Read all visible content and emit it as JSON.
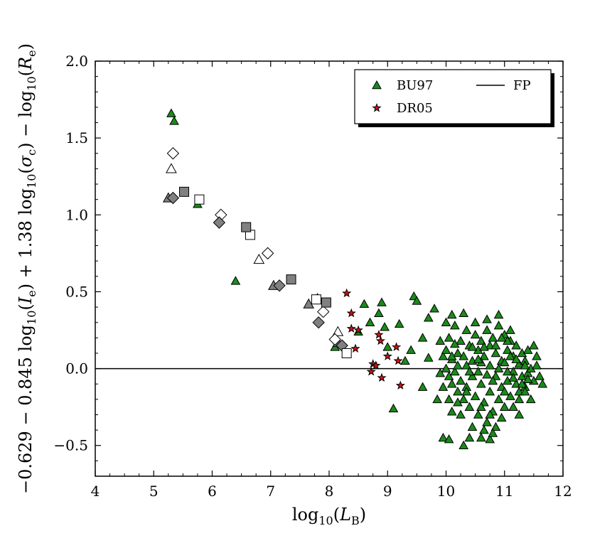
{
  "chart_data": {
    "type": "scatter",
    "title": "",
    "xlabel": "log10(LB)",
    "ylabel": "−0.629 − 0.845 log10(Ie) + 1.38 log10(σc) − log10(Re)",
    "xlim": [
      4,
      12
    ],
    "ylim": [
      -0.7,
      2.0
    ],
    "x_ticks": [
      "4",
      "5",
      "6",
      "7",
      "8",
      "9",
      "10",
      "11",
      "12"
    ],
    "y_ticks": [
      "−0.5",
      "0.0",
      "0.5",
      "1.0",
      "1.5",
      "2.0"
    ],
    "legend_position": "top-right",
    "reference_line": {
      "name": "FP",
      "y": 0.0,
      "color": "#000000"
    },
    "series": [
      {
        "name": "BU97",
        "marker": "triangle",
        "color": "#1a8a1a",
        "points": [
          [
            5.3,
            1.66
          ],
          [
            5.35,
            1.61
          ],
          [
            5.75,
            1.07
          ],
          [
            6.4,
            0.57
          ],
          [
            7.8,
            0.46
          ],
          [
            8.1,
            0.14
          ],
          [
            8.5,
            0.24
          ],
          [
            8.6,
            0.42
          ],
          [
            8.9,
            0.43
          ],
          [
            8.85,
            0.36
          ],
          [
            8.7,
            0.3
          ],
          [
            8.95,
            0.27
          ],
          [
            9.0,
            0.14
          ],
          [
            9.2,
            0.29
          ],
          [
            9.3,
            0.05
          ],
          [
            9.4,
            0.12
          ],
          [
            9.45,
            0.47
          ],
          [
            9.5,
            0.44
          ],
          [
            9.6,
            0.2
          ],
          [
            9.7,
            0.33
          ],
          [
            9.8,
            0.39
          ],
          [
            9.7,
            0.07
          ],
          [
            9.6,
            -0.12
          ],
          [
            9.1,
            -0.26
          ],
          [
            9.85,
            -0.2
          ],
          [
            9.9,
            0.18
          ],
          [
            9.95,
            -0.45
          ],
          [
            10.05,
            -0.46
          ],
          [
            10.3,
            -0.5
          ],
          [
            10.75,
            -0.46
          ],
          [
            10.0,
            0.3
          ],
          [
            10.05,
            0.2
          ],
          [
            10.1,
            0.35
          ],
          [
            10.15,
            0.28
          ],
          [
            10.2,
            0.1
          ],
          [
            10.3,
            0.36
          ],
          [
            10.35,
            0.25
          ],
          [
            10.4,
            0.15
          ],
          [
            10.45,
            0.05
          ],
          [
            10.5,
            0.22
          ],
          [
            10.55,
            0.12
          ],
          [
            10.6,
            0.18
          ],
          [
            10.65,
            0.08
          ],
          [
            10.7,
            0.25
          ],
          [
            10.75,
            0.15
          ],
          [
            10.8,
            0.2
          ],
          [
            10.85,
            0.1
          ],
          [
            10.9,
            0.28
          ],
          [
            10.95,
            0.05
          ],
          [
            11.0,
            0.22
          ],
          [
            11.05,
            0.12
          ],
          [
            11.1,
            0.18
          ],
          [
            11.15,
            0.08
          ],
          [
            11.2,
            0.15
          ],
          [
            11.25,
            0.03
          ],
          [
            11.3,
            0.1
          ],
          [
            11.35,
            0.05
          ],
          [
            11.4,
            0.12
          ],
          [
            11.5,
            0.15
          ],
          [
            11.55,
            0.08
          ],
          [
            10.0,
            0.0
          ],
          [
            10.05,
            -0.05
          ],
          [
            10.1,
            -0.1
          ],
          [
            10.15,
            -0.02
          ],
          [
            10.2,
            -0.15
          ],
          [
            10.25,
            -0.08
          ],
          [
            10.3,
            -0.2
          ],
          [
            10.35,
            -0.12
          ],
          [
            10.4,
            -0.25
          ],
          [
            10.45,
            -0.05
          ],
          [
            10.5,
            -0.18
          ],
          [
            10.55,
            -0.3
          ],
          [
            10.6,
            -0.1
          ],
          [
            10.65,
            -0.22
          ],
          [
            10.7,
            -0.35
          ],
          [
            10.75,
            -0.15
          ],
          [
            10.8,
            -0.28
          ],
          [
            10.85,
            -0.05
          ],
          [
            10.9,
            -0.2
          ],
          [
            10.95,
            -0.12
          ],
          [
            11.0,
            -0.25
          ],
          [
            11.05,
            -0.08
          ],
          [
            11.1,
            -0.18
          ],
          [
            11.15,
            -0.02
          ],
          [
            11.2,
            -0.1
          ],
          [
            11.25,
            -0.15
          ],
          [
            11.3,
            -0.05
          ],
          [
            11.35,
            -0.12
          ],
          [
            11.4,
            -0.03
          ],
          [
            11.45,
            0.0
          ],
          [
            11.5,
            -0.08
          ],
          [
            11.6,
            -0.05
          ],
          [
            11.65,
            -0.1
          ],
          [
            11.55,
            0.02
          ],
          [
            11.45,
            -0.2
          ],
          [
            11.25,
            -0.3
          ],
          [
            11.15,
            -0.25
          ],
          [
            10.95,
            -0.32
          ],
          [
            10.85,
            -0.38
          ],
          [
            10.65,
            -0.4
          ],
          [
            10.45,
            -0.38
          ],
          [
            10.25,
            -0.3
          ],
          [
            10.1,
            -0.28
          ],
          [
            10.05,
            -0.2
          ],
          [
            9.95,
            -0.12
          ],
          [
            9.9,
            -0.03
          ],
          [
            9.95,
            0.08
          ],
          [
            10.0,
            0.12
          ],
          [
            10.1,
            0.06
          ],
          [
            10.2,
            0.02
          ],
          [
            10.25,
            0.18
          ],
          [
            10.35,
            0.02
          ],
          [
            10.4,
            -0.02
          ],
          [
            10.45,
            0.14
          ],
          [
            10.55,
            -0.02
          ],
          [
            10.6,
            0.04
          ],
          [
            10.7,
            -0.04
          ],
          [
            10.75,
            0.02
          ],
          [
            10.8,
            -0.08
          ],
          [
            10.9,
            0.0
          ],
          [
            11.0,
            0.04
          ],
          [
            11.05,
            -0.02
          ],
          [
            11.1,
            0.08
          ],
          [
            11.15,
            -0.06
          ],
          [
            11.2,
            0.06
          ],
          [
            11.3,
            -0.1
          ],
          [
            11.35,
            0.02
          ],
          [
            11.4,
            -0.07
          ],
          [
            10.5,
            0.3
          ],
          [
            10.7,
            0.32
          ],
          [
            10.9,
            0.35
          ],
          [
            11.1,
            0.25
          ],
          [
            10.6,
            -0.45
          ],
          [
            10.8,
            -0.42
          ],
          [
            10.4,
            -0.45
          ],
          [
            10.3,
            0.08
          ],
          [
            10.55,
            0.06
          ],
          [
            10.85,
            0.15
          ],
          [
            11.05,
            0.18
          ],
          [
            10.65,
            0.14
          ],
          [
            10.15,
            0.16
          ],
          [
            10.35,
            -0.15
          ],
          [
            10.6,
            -0.25
          ],
          [
            10.75,
            -0.3
          ],
          [
            11.0,
            -0.15
          ],
          [
            11.25,
            -0.2
          ],
          [
            10.2,
            -0.22
          ],
          [
            10.1,
            0.08
          ],
          [
            10.95,
            0.2
          ],
          [
            11.35,
            -0.15
          ]
        ]
      },
      {
        "name": "DR05",
        "marker": "star",
        "color": "#cc1111",
        "points": [
          [
            8.3,
            0.49
          ],
          [
            8.38,
            0.36
          ],
          [
            8.38,
            0.26
          ],
          [
            8.45,
            0.13
          ],
          [
            8.5,
            0.25
          ],
          [
            8.72,
            -0.02
          ],
          [
            8.75,
            0.03
          ],
          [
            8.8,
            0.02
          ],
          [
            8.85,
            0.22
          ],
          [
            8.88,
            0.18
          ],
          [
            8.9,
            -0.06
          ],
          [
            9.0,
            0.08
          ],
          [
            9.15,
            0.14
          ],
          [
            9.18,
            0.05
          ],
          [
            9.22,
            -0.11
          ]
        ]
      },
      {
        "name": "",
        "marker": "triangle-open",
        "color": "#ffffff",
        "points": [
          [
            5.3,
            1.3
          ],
          [
            6.8,
            0.71
          ],
          [
            8.15,
            0.24
          ]
        ]
      },
      {
        "name": "",
        "marker": "triangle-filled-gray",
        "color": "#808080",
        "points": [
          [
            5.25,
            1.11
          ],
          [
            7.05,
            0.54
          ],
          [
            7.65,
            0.42
          ],
          [
            8.15,
            0.17
          ]
        ]
      },
      {
        "name": "",
        "marker": "diamond-open",
        "color": "#ffffff",
        "points": [
          [
            5.33,
            1.4
          ],
          [
            6.15,
            1.0
          ],
          [
            6.95,
            0.75
          ],
          [
            7.9,
            0.37
          ],
          [
            8.1,
            0.19
          ]
        ]
      },
      {
        "name": "",
        "marker": "diamond-filled-gray",
        "color": "#808080",
        "points": [
          [
            5.33,
            1.11
          ],
          [
            6.12,
            0.95
          ],
          [
            7.15,
            0.54
          ],
          [
            7.82,
            0.3
          ],
          [
            8.22,
            0.15
          ]
        ]
      },
      {
        "name": "",
        "marker": "square-open",
        "color": "#ffffff",
        "points": [
          [
            5.78,
            1.1
          ],
          [
            6.65,
            0.87
          ],
          [
            7.78,
            0.45
          ],
          [
            8.3,
            0.1
          ]
        ]
      },
      {
        "name": "",
        "marker": "square-filled-gray",
        "color": "#808080",
        "points": [
          [
            5.52,
            1.15
          ],
          [
            6.58,
            0.92
          ],
          [
            7.35,
            0.58
          ],
          [
            7.95,
            0.43
          ]
        ]
      }
    ]
  },
  "legend": {
    "entries": [
      {
        "label": "BU97",
        "marker": "triangle",
        "color": "#1a8a1a"
      },
      {
        "label": "DR05",
        "marker": "star",
        "color": "#cc1111"
      },
      {
        "label": "FP",
        "marker": "line",
        "color": "#000000"
      }
    ]
  }
}
